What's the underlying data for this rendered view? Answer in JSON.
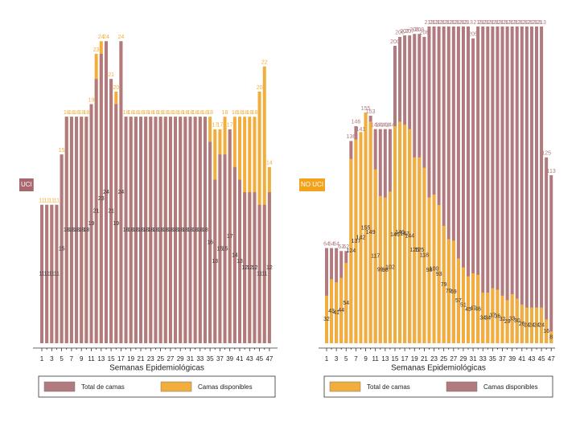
{
  "chart_data": [
    {
      "type": "bar",
      "title": "UCI",
      "title_color": "#a9666c",
      "categories": [
        1,
        null,
        3,
        null,
        5,
        null,
        7,
        null,
        9,
        null,
        11,
        null,
        13,
        null,
        15,
        null,
        17,
        null,
        19,
        null,
        21,
        null,
        23,
        null,
        25,
        null,
        27,
        null,
        29,
        null,
        31,
        null,
        33,
        null,
        35,
        null,
        37,
        null,
        39,
        null,
        41,
        null,
        43,
        null,
        45,
        null,
        47
      ],
      "x_label": "Semanas Epidemiológicas",
      "ylim": [
        0,
        26
      ],
      "series": [
        {
          "name": "Total de camas",
          "color": "#b07a7e",
          "values": [
            11,
            11,
            11,
            11,
            15,
            18,
            18,
            18,
            18,
            18,
            19,
            21,
            23,
            24,
            21,
            19,
            24,
            18,
            18,
            18,
            18,
            18,
            18,
            18,
            18,
            18,
            18,
            18,
            18,
            18,
            18,
            18,
            18,
            18,
            16,
            13,
            15,
            15,
            17,
            14,
            13,
            12,
            12,
            12,
            11,
            11,
            12
          ]
        },
        {
          "name": "Camas disponibles",
          "color": "#f2ae3c",
          "values": [
            11,
            11,
            11,
            11,
            15,
            18,
            18,
            18,
            18,
            18,
            19,
            23,
            24,
            24,
            21,
            20,
            24,
            18,
            18,
            18,
            18,
            18,
            18,
            18,
            18,
            18,
            18,
            18,
            18,
            18,
            18,
            18,
            18,
            18,
            18,
            17,
            17,
            18,
            17,
            18,
            18,
            18,
            18,
            18,
            20,
            22,
            14
          ]
        }
      ]
    },
    {
      "type": "bar",
      "title": "NO UCI",
      "title_color": "#f2a31c",
      "categories": [
        1,
        null,
        3,
        null,
        5,
        null,
        7,
        null,
        9,
        null,
        11,
        null,
        13,
        null,
        15,
        null,
        17,
        null,
        19,
        null,
        21,
        null,
        23,
        null,
        25,
        null,
        27,
        null,
        29,
        null,
        31,
        null,
        33,
        null,
        35,
        null,
        37,
        null,
        39,
        null,
        41,
        null,
        43,
        null,
        45,
        null,
        47
      ],
      "x_label": "Semanas Epidemiológicas",
      "ylim": [
        0,
        220
      ],
      "series": [
        {
          "name": "Total de camas",
          "color": "#f2ae3c",
          "values": [
            32,
            43,
            41,
            44,
            54,
            124,
            137,
            142,
            155,
            149,
            117,
            99,
            98,
            102,
            146,
            149,
            147,
            144,
            125,
            125,
            118,
            98,
            100,
            93,
            79,
            70,
            69,
            57,
            51,
            45,
            47,
            46,
            34,
            34,
            37,
            36,
            32,
            29,
            33,
            30,
            26,
            24,
            24,
            24,
            24,
            16,
            8
          ]
        },
        {
          "name": "Camas disponibles",
          "color": "#b07a7e",
          "values": [
            64,
            64,
            64,
            62,
            62,
            136,
            146,
            141,
            155,
            153,
            144,
            144,
            144,
            144,
            200,
            206,
            207,
            207,
            208,
            208,
            206,
            213,
            213,
            213,
            213,
            213,
            213,
            213,
            213,
            213,
            205,
            213,
            213,
            213,
            213,
            213,
            213,
            213,
            213,
            213,
            213,
            213,
            213,
            213,
            213,
            125,
            113
          ]
        }
      ]
    }
  ]
}
